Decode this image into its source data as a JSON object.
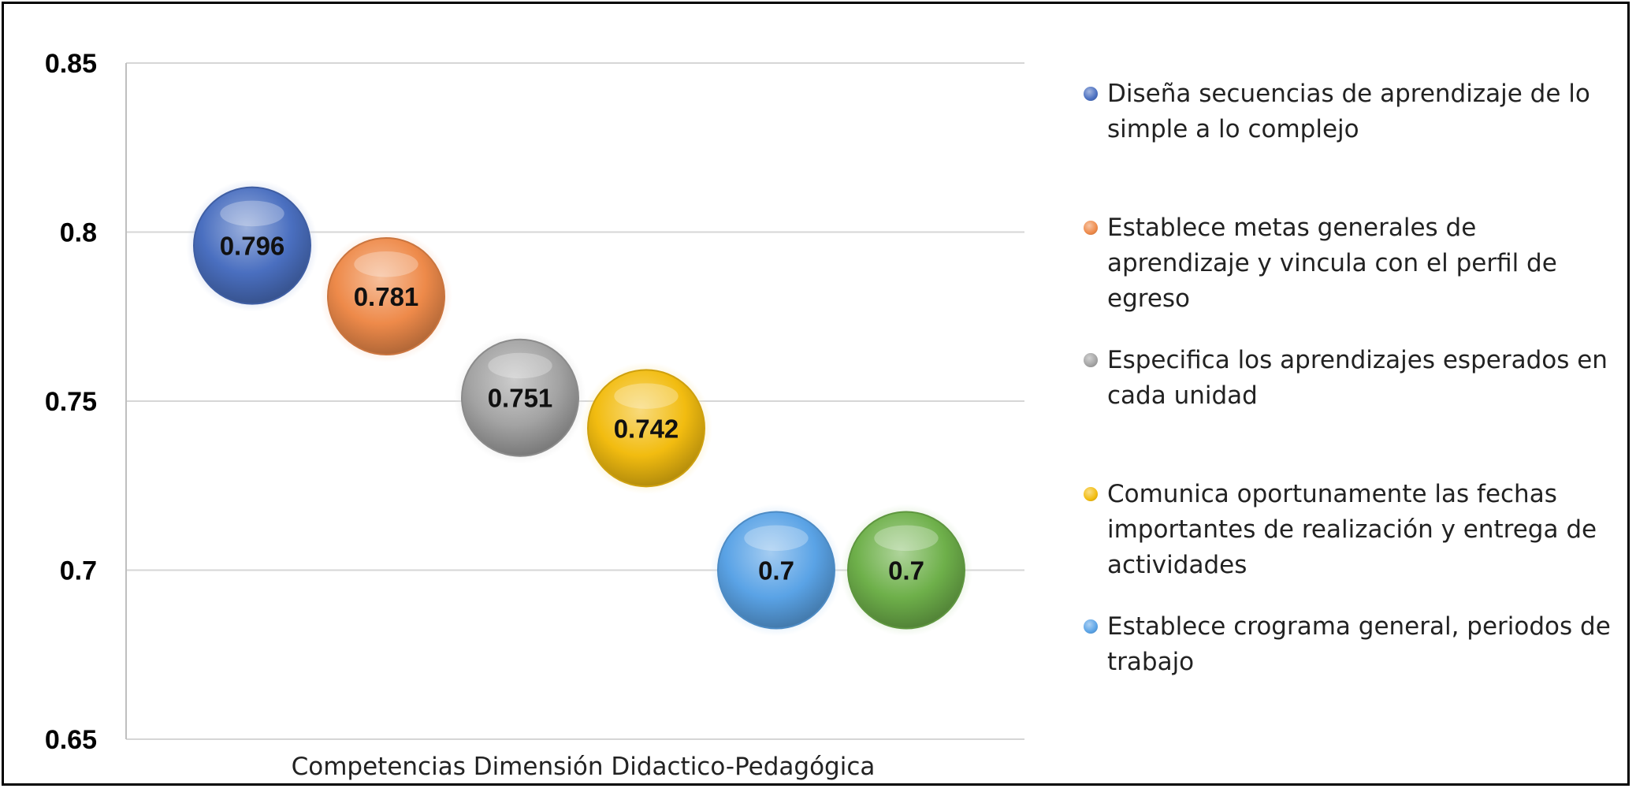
{
  "chart_data": {
    "type": "scatter",
    "title": "",
    "xlabel": "Competencias Dimensión Didactico-Pedagógica",
    "ylabel": "",
    "ylim": [
      0.65,
      0.85
    ],
    "yticks": [
      "0.85",
      "0.8",
      "0.75",
      "0.7",
      "0.65"
    ],
    "grid": true,
    "legend_position": "right",
    "series": [
      {
        "name": "Diseña secuencias de aprendizaje de lo simple a lo complejo",
        "value": 0.796,
        "label": "0.796",
        "color": "#4a6fc0",
        "x": 1
      },
      {
        "name": "Establece metas generales de aprendizaje y vincula con el perfil de egreso",
        "value": 0.781,
        "label": "0.781",
        "color": "#ee8a4a",
        "x": 2
      },
      {
        "name": "Especifica los aprendizajes esperados en cada unidad",
        "value": 0.751,
        "label": "0.751",
        "color": "#a3a3a3",
        "x": 3
      },
      {
        "name": "Comunica oportunamente las fechas importantes de realización y entrega de actividades",
        "value": 0.742,
        "label": "0.742",
        "color": "#f2bc10",
        "x": 4
      },
      {
        "name": "Establece crograma general, periodos de trabajo",
        "value": 0.7,
        "label": "0.7",
        "color": "#5aa3e6",
        "x": 5
      },
      {
        "name": "",
        "value": 0.7,
        "label": "0.7",
        "color": "#6eb04a",
        "x": 6
      }
    ]
  }
}
